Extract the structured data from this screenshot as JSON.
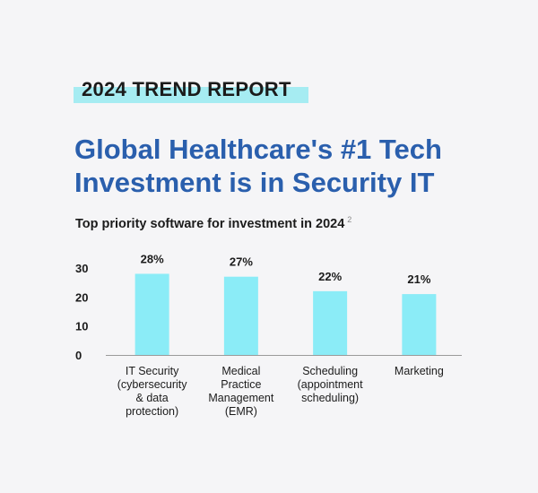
{
  "tag": "2024 TREND REPORT",
  "headline": "Global Healthcare's #1 Tech Investment is in Security IT",
  "subtitle": "Top priority software for investment in 2024",
  "footnote": "2",
  "colors": {
    "bar": "#8becf7",
    "headline": "#2a5fad",
    "tag_highlight": "#a6ecf2",
    "background": "#f5f5f7"
  },
  "chart_data": {
    "type": "bar",
    "title": "Top priority software for investment in 2024",
    "categories": [
      [
        "IT Security",
        "(cybersecurity",
        "& data",
        "protection)"
      ],
      [
        "Medical",
        "Practice",
        "Management",
        "(EMR)"
      ],
      [
        "Scheduling",
        "(appointment",
        "scheduling)"
      ],
      [
        "Marketing"
      ]
    ],
    "values": [
      28,
      27,
      22,
      21
    ],
    "data_labels": [
      "28%",
      "27%",
      "22%",
      "21%"
    ],
    "ylim": [
      0,
      30
    ],
    "yticks": [
      0,
      10,
      20,
      30
    ],
    "xlabel": "",
    "ylabel": "",
    "grid": false,
    "legend": "none"
  }
}
